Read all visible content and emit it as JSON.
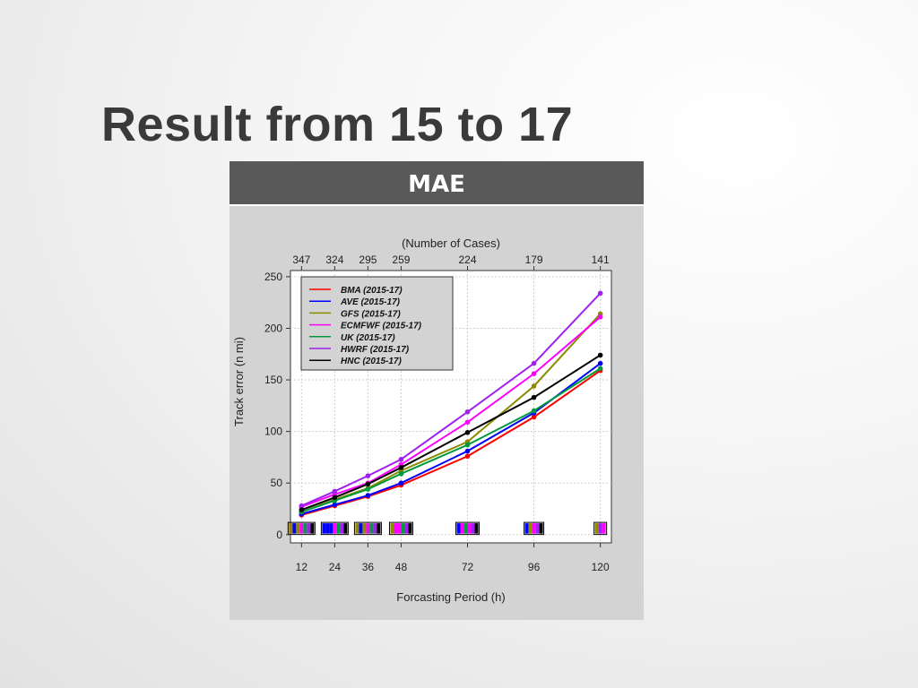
{
  "slide": {
    "title": "Result from 15 to 17",
    "banner": "MAE"
  },
  "chart_data": {
    "type": "line",
    "title": "",
    "xlabel": "Forcasting Period (h)",
    "ylabel": "Track error (n mi)",
    "top_axis_label": "(Number of Cases)",
    "x": [
      12,
      24,
      36,
      48,
      72,
      96,
      120
    ],
    "x_tick_labels": [
      "12",
      "24",
      "36",
      "48",
      "72",
      "96",
      "120"
    ],
    "top_tick_labels": [
      "347",
      "324",
      "295",
      "259",
      "224",
      "179",
      "141"
    ],
    "xlim": [
      8,
      124
    ],
    "ylim": [
      -8,
      256
    ],
    "y_ticks": [
      0,
      50,
      100,
      150,
      200,
      250
    ],
    "grid": true,
    "legend_position": "top-left",
    "series": [
      {
        "name": "BMA (2015-17)",
        "color": "#ff0000",
        "values": [
          19,
          28,
          37,
          48,
          76,
          114,
          159
        ]
      },
      {
        "name": "AVE (2015-17)",
        "color": "#0000ff",
        "values": [
          20,
          29,
          38,
          50,
          81,
          118,
          166
        ]
      },
      {
        "name": "GFS (2015-17)",
        "color": "#8b8b00",
        "values": [
          22,
          34,
          45,
          62,
          90,
          144,
          214
        ]
      },
      {
        "name": "ECMFWF (2015-17)",
        "color": "#ff00ff",
        "values": [
          27,
          39,
          50,
          68,
          109,
          156,
          211
        ]
      },
      {
        "name": "UK (2015-17)",
        "color": "#009a3e",
        "values": [
          22,
          33,
          44,
          59,
          87,
          120,
          161
        ]
      },
      {
        "name": "HWRF (2015-17)",
        "color": "#a020f0",
        "values": [
          28,
          42,
          57,
          73,
          119,
          166,
          234
        ]
      },
      {
        "name": "HNC (2015-17)",
        "color": "#000000",
        "values": [
          24,
          36,
          49,
          65,
          99,
          133,
          174
        ]
      }
    ],
    "significance_markers": [
      {
        "x": 12,
        "colors": [
          "#a08000",
          "#0000ff",
          "#8b8b00",
          "#ff00ff",
          "#009a3e",
          "#a020f0",
          "#000000"
        ]
      },
      {
        "x": 24,
        "colors": [
          "#0000ff",
          "#0000ff",
          "#0000ff",
          "#ff00ff",
          "#009a3e",
          "#a020f0",
          "#000000"
        ]
      },
      {
        "x": 36,
        "colors": [
          "#8b8b00",
          "#0000ff",
          "#8b8b00",
          "#ff00ff",
          "#009a3e",
          "#a020f0",
          "#000000"
        ]
      },
      {
        "x": 48,
        "colors": [
          "#8b8b00",
          "#ff00ff",
          "#ff00ff",
          "#009a3e",
          "#a020f0",
          "#000000"
        ]
      },
      {
        "x": 72,
        "colors": [
          "#0000ff",
          "#ff00ff",
          "#009a3e",
          "#ff00ff",
          "#a020f0",
          "#000000"
        ]
      },
      {
        "x": 96,
        "colors": [
          "#0000ff",
          "#8b8b00",
          "#ff00ff",
          "#a020f0",
          "#000000"
        ]
      },
      {
        "x": 120,
        "colors": [
          "#8b8b00",
          "#a020f0",
          "#ff00ff"
        ]
      }
    ]
  }
}
